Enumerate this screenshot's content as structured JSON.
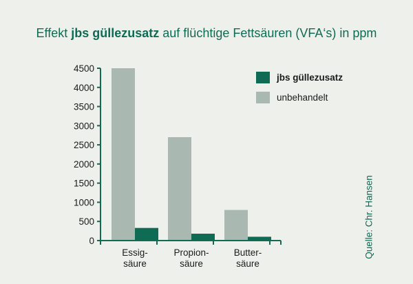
{
  "title": {
    "prefix": "Effekt ",
    "brand": "jbs güllezusatz",
    "suffix": " auf flüchtige Fettsäuren (VFA‘s) in ppm"
  },
  "source": "Quelle: Chr. Hansen",
  "colors": {
    "background": "#eef0ec",
    "treated": "#0f6b54",
    "untreated": "#a9b9b1",
    "axis": "#0f6b54",
    "title": "#0f6b54"
  },
  "chart_data": {
    "type": "bar",
    "categories": [
      [
        "Essig-",
        "säure"
      ],
      [
        "Propion-",
        "säure"
      ],
      [
        "Butter-",
        "säure"
      ]
    ],
    "series": [
      {
        "name": "unbehandelt",
        "values": [
          4500,
          2700,
          800
        ],
        "color": "#a9b9b1"
      },
      {
        "name": "jbs güllezusatz",
        "values": [
          330,
          180,
          100
        ],
        "color": "#0f6b54"
      }
    ],
    "legend_order": [
      "jbs güllezusatz",
      "unbehandelt"
    ],
    "legend_placement": "top-right",
    "yticks": [
      0,
      500,
      1000,
      1500,
      2000,
      2500,
      3000,
      3500,
      4000,
      4500
    ],
    "ylim": [
      0,
      4500
    ],
    "grid": false
  }
}
